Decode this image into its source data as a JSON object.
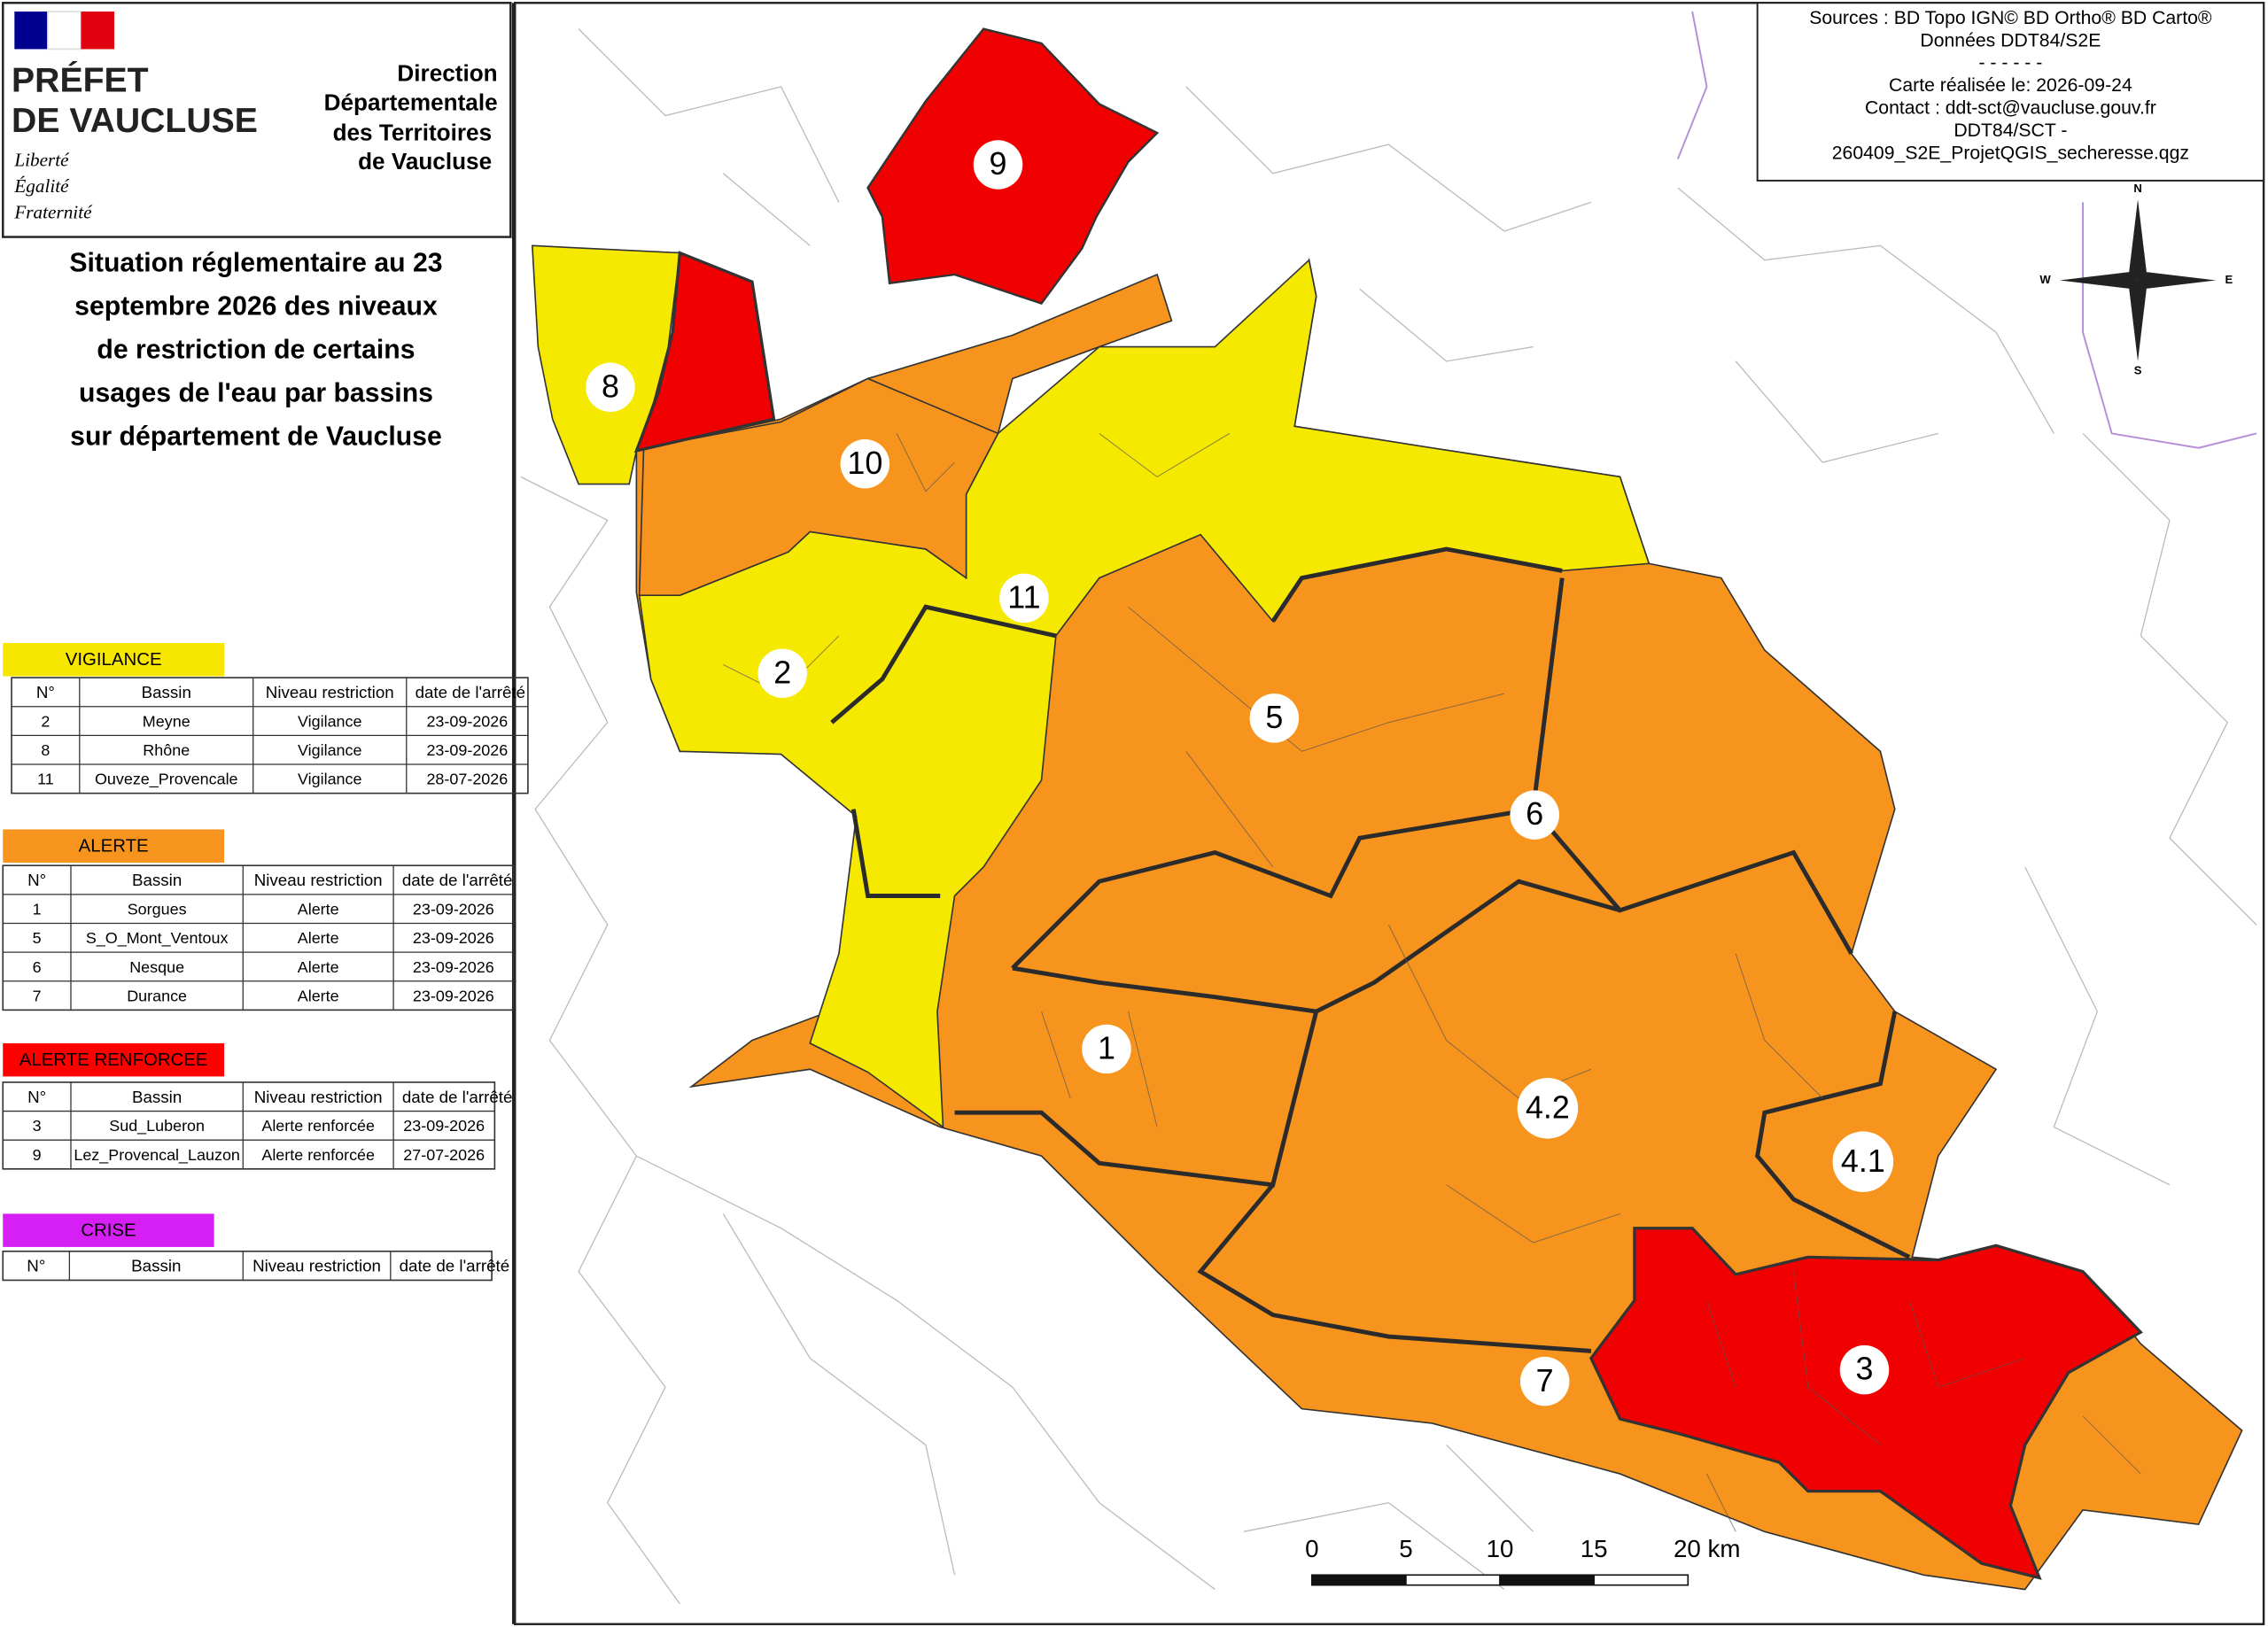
{
  "header": {
    "logo_lines": [
      "PRÉFET",
      "DE VAUCLUSE"
    ],
    "motto": [
      "Liberté",
      "Égalité",
      "Fraternité"
    ],
    "direction": [
      "Direction",
      "Départementale",
      "des Territoires",
      "de Vaucluse"
    ]
  },
  "title_lines": [
    "Situation réglementaire au 23",
    "septembre 2026 des niveaux",
    "de restriction de certains",
    "usages de l'eau par bassins",
    "sur département de Vaucluse"
  ],
  "legend": [
    {
      "label": "VIGILANCE",
      "color": "#f7e600",
      "columns": [
        "N°",
        "Bassin",
        "Niveau restriction",
        "date de l'arrêté"
      ],
      "rows": [
        [
          "2",
          "Meyne",
          "Vigilance",
          "23-09-2026"
        ],
        [
          "8",
          "Rhône",
          "Vigilance",
          "23-09-2026"
        ],
        [
          "11",
          "Ouveze_Provencale",
          "Vigilance",
          "28-07-2026"
        ]
      ]
    },
    {
      "label": "ALERTE",
      "color": "#f7941d",
      "columns": [
        "N°",
        "Bassin",
        "Niveau restriction",
        "date de l'arrêté"
      ],
      "rows": [
        [
          "1",
          "Sorgues",
          "Alerte",
          "23-09-2026"
        ],
        [
          "5",
          "S_O_Mont_Ventoux",
          "Alerte",
          "23-09-2026"
        ],
        [
          "6",
          "Nesque",
          "Alerte",
          "23-09-2026"
        ],
        [
          "7",
          "Durance",
          "Alerte",
          "23-09-2026"
        ]
      ]
    },
    {
      "label": "ALERTE RENFORCEE",
      "color": "#ff0000",
      "columns": [
        "N°",
        "Bassin",
        "Niveau restriction",
        "date de l'arrêté"
      ],
      "rows": [
        [
          "3",
          "Sud_Luberon",
          "Alerte renforcée",
          "23-09-2026"
        ],
        [
          "9",
          "Lez_Provencal_Lauzon",
          "Alerte renforcée",
          "27-07-2026"
        ]
      ]
    },
    {
      "label": "CRISE",
      "color": "#d61ff5",
      "columns": [
        "N°",
        "Bassin",
        "Niveau restriction",
        "date de l'arrêté"
      ],
      "rows": []
    }
  ],
  "sources": [
    "Sources : BD Topo IGN© BD Ortho® BD Carto®",
    "Données DDT84/S2E",
    "- - - - - -",
    "Carte réalisée le: 2026-09-24",
    "Contact : ddt-sct@vaucluse.gouv.fr",
    "DDT84/SCT -",
    "260409_S2E_ProjetQGIS_secheresse.qgz"
  ],
  "compass": {
    "n": "N",
    "s": "S",
    "e": "E",
    "w": "W"
  },
  "scale_labels": [
    "0",
    "5",
    "10",
    "15",
    "20 km"
  ],
  "basins": [
    "9",
    "8",
    "10",
    "11",
    "2",
    "5",
    "6",
    "1",
    "4.2",
    "4.1",
    "3",
    "7"
  ]
}
